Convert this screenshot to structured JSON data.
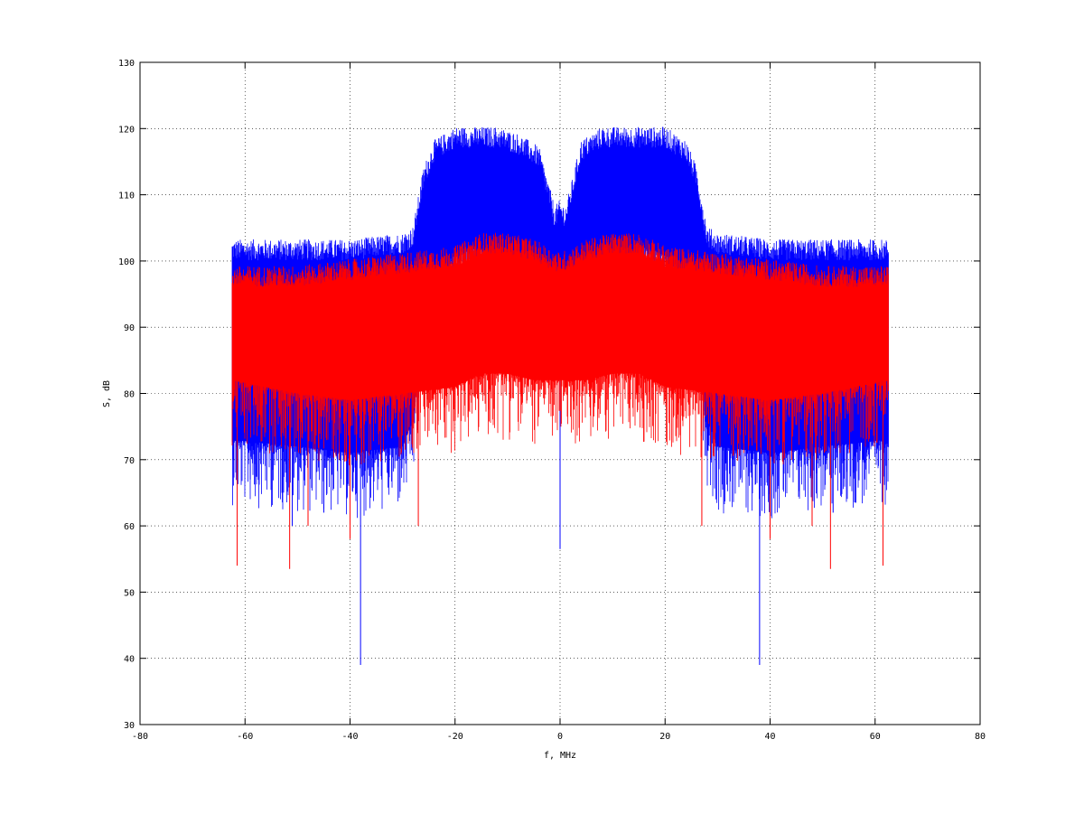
{
  "chart_data": {
    "type": "line",
    "title": "",
    "xlabel": "f, MHz",
    "ylabel": "S, dB",
    "xlim": [
      -80,
      80
    ],
    "ylim": [
      30,
      130
    ],
    "xticks": [
      -80,
      -60,
      -40,
      -20,
      0,
      20,
      40,
      60,
      80
    ],
    "yticks": [
      30,
      40,
      50,
      60,
      70,
      80,
      90,
      100,
      110,
      120,
      130
    ],
    "grid": true,
    "grid_style": "dotted",
    "legend": "none",
    "series": [
      {
        "color": "#0000ff",
        "x": [
          -62.5,
          -50,
          -40,
          -30,
          -28,
          -26,
          -24,
          -20,
          -16,
          -12,
          -8,
          -4,
          -2,
          -1,
          0,
          1,
          2,
          4,
          8,
          12,
          16,
          20,
          24,
          26,
          28,
          30,
          40,
          50,
          62.5
        ],
        "upper": [
          102,
          102,
          102,
          103,
          104,
          113,
          117,
          119,
          119,
          119,
          118,
          116,
          110,
          107,
          108,
          107,
          110,
          117,
          119,
          119,
          119,
          119,
          117,
          113,
          104,
          103,
          102,
          102,
          102
        ],
        "lower": [
          73,
          72,
          71,
          72,
          76,
          90,
          98,
          101,
          102,
          101,
          100,
          97,
          95,
          94,
          93,
          94,
          95,
          97,
          100,
          101,
          102,
          101,
          98,
          90,
          76,
          72,
          71,
          72,
          73
        ],
        "spikes": [
          {
            "x": -38,
            "y": 39
          },
          {
            "x": 0,
            "y": 56.5
          },
          {
            "x": 38,
            "y": 39
          },
          {
            "x": -59,
            "y": 67
          },
          {
            "x": -51,
            "y": 60
          },
          {
            "x": -45,
            "y": 62
          },
          {
            "x": 40,
            "y": 59
          },
          {
            "x": 52,
            "y": 62
          },
          {
            "x": 58,
            "y": 67
          }
        ]
      },
      {
        "color": "#ff0000",
        "x": [
          -62.5,
          -50,
          -40,
          -30,
          -20,
          -15,
          -10,
          -5,
          0,
          5,
          10,
          15,
          20,
          30,
          40,
          50,
          62.5
        ],
        "upper": [
          98,
          98,
          99,
          100,
          101,
          103,
          103,
          102,
          100,
          102,
          103,
          103,
          101,
          100,
          99,
          98,
          98
        ],
        "lower": [
          82,
          80,
          79,
          80,
          81,
          83,
          83,
          82,
          82,
          82,
          83,
          83,
          81,
          80,
          79,
          80,
          82
        ],
        "spikes": [
          {
            "x": -61.5,
            "y": 54
          },
          {
            "x": -51.5,
            "y": 53.5
          },
          {
            "x": -40,
            "y": 58
          },
          {
            "x": -27,
            "y": 60
          },
          {
            "x": 27,
            "y": 60
          },
          {
            "x": 40,
            "y": 58
          },
          {
            "x": 51.5,
            "y": 53.5
          },
          {
            "x": 61.5,
            "y": 54
          },
          {
            "x": -48,
            "y": 60
          },
          {
            "x": 48,
            "y": 60
          }
        ]
      }
    ]
  }
}
